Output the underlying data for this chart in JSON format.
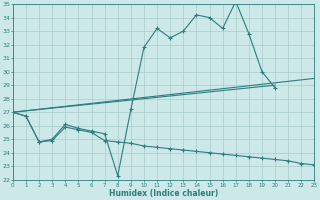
{
  "xlabel": "Humidex (Indice chaleur)",
  "bg_color": "#cce8e8",
  "grid_color": "#aacccc",
  "line_color": "#2d7d7d",
  "xlim": [
    0,
    23
  ],
  "ylim": [
    22,
    35
  ],
  "xticks": [
    0,
    1,
    2,
    3,
    4,
    5,
    6,
    7,
    8,
    9,
    10,
    11,
    12,
    13,
    14,
    15,
    16,
    17,
    18,
    19,
    20,
    21,
    22,
    23
  ],
  "yticks": [
    22,
    23,
    24,
    25,
    26,
    27,
    28,
    29,
    30,
    31,
    32,
    33,
    34,
    35
  ],
  "curve1_x": [
    0,
    1,
    2,
    3,
    4,
    5,
    6,
    7,
    8,
    9,
    10,
    11,
    12,
    13,
    14,
    15,
    16,
    17,
    18,
    19,
    20
  ],
  "curve1_y": [
    27.0,
    26.7,
    24.8,
    25.0,
    26.1,
    25.8,
    25.6,
    25.4,
    22.3,
    27.2,
    31.8,
    33.2,
    32.5,
    33.0,
    34.2,
    34.0,
    33.2,
    35.2,
    32.8,
    30.0,
    28.8
  ],
  "curve2_x": [
    0,
    1,
    2,
    3,
    4,
    5,
    6,
    7,
    8,
    9,
    10,
    11,
    12,
    13,
    14,
    15,
    16,
    17,
    18,
    19,
    20,
    21,
    22,
    23
  ],
  "curve2_y": [
    27.0,
    26.7,
    24.8,
    24.9,
    25.9,
    25.7,
    25.5,
    24.9,
    24.8,
    24.7,
    24.5,
    24.4,
    24.3,
    24.2,
    24.1,
    24.0,
    23.9,
    23.8,
    23.7,
    23.6,
    23.5,
    23.4,
    23.2,
    23.1
  ],
  "line1_x": [
    0,
    23
  ],
  "line1_y": [
    27.0,
    29.5
  ],
  "line2_x": [
    0,
    20
  ],
  "line2_y": [
    27.0,
    29.0
  ]
}
